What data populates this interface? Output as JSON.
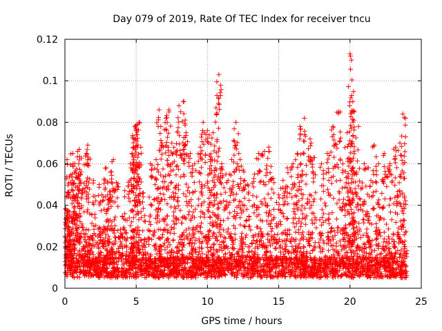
{
  "chart_data": {
    "type": "scatter",
    "title": "Day 079 of 2019, Rate Of TEC Index for receiver tncu",
    "xlabel": "GPS time / hours",
    "ylabel": "ROTI / TECUs",
    "xlim": [
      0,
      25
    ],
    "ylim": [
      0,
      0.12
    ],
    "x_ticks": [
      0,
      5,
      10,
      15,
      20,
      25
    ],
    "x_tick_labels": [
      "0",
      "5",
      "10",
      "15",
      "20",
      "25"
    ],
    "y_ticks": [
      0,
      0.02,
      0.04,
      0.06,
      0.08,
      0.1,
      0.12
    ],
    "y_tick_labels": [
      "0",
      "0.02",
      "0.04",
      "0.06",
      "0.08",
      "0.1",
      "0.12"
    ],
    "grid": true,
    "marker": "+",
    "color": "#ff0000",
    "background_band": [
      0.005,
      0.015
    ],
    "points": [
      [
        0.05,
        0.038
      ],
      [
        0.1,
        0.034
      ],
      [
        0.15,
        0.062
      ],
      [
        0.2,
        0.025
      ],
      [
        0.3,
        0.045
      ],
      [
        0.4,
        0.051
      ],
      [
        0.5,
        0.055
      ],
      [
        0.55,
        0.065
      ],
      [
        0.7,
        0.06
      ],
      [
        0.8,
        0.045
      ],
      [
        0.9,
        0.066
      ],
      [
        1.0,
        0.067
      ],
      [
        1.1,
        0.055
      ],
      [
        1.2,
        0.03
      ],
      [
        1.5,
        0.065
      ],
      [
        1.6,
        0.069
      ],
      [
        1.8,
        0.025
      ],
      [
        2.0,
        0.052
      ],
      [
        2.4,
        0.05
      ],
      [
        2.6,
        0.045
      ],
      [
        2.9,
        0.058
      ],
      [
        3.0,
        0.045
      ],
      [
        3.2,
        0.056
      ],
      [
        3.4,
        0.062
      ],
      [
        3.6,
        0.051
      ],
      [
        3.9,
        0.025
      ],
      [
        4.2,
        0.047
      ],
      [
        4.6,
        0.06
      ],
      [
        4.7,
        0.065
      ],
      [
        4.8,
        0.068
      ],
      [
        4.9,
        0.078
      ],
      [
        5.0,
        0.076
      ],
      [
        5.1,
        0.079
      ],
      [
        5.2,
        0.08
      ],
      [
        5.5,
        0.046
      ],
      [
        6.0,
        0.06
      ],
      [
        6.4,
        0.062
      ],
      [
        6.6,
        0.086
      ],
      [
        6.8,
        0.07
      ],
      [
        7.1,
        0.082
      ],
      [
        7.3,
        0.086
      ],
      [
        7.5,
        0.07
      ],
      [
        7.8,
        0.066
      ],
      [
        8.0,
        0.088
      ],
      [
        8.3,
        0.09
      ],
      [
        8.5,
        0.075
      ],
      [
        8.8,
        0.065
      ],
      [
        9.1,
        0.06
      ],
      [
        9.5,
        0.068
      ],
      [
        9.7,
        0.08
      ],
      [
        10.0,
        0.076
      ],
      [
        10.2,
        0.062
      ],
      [
        10.4,
        0.075
      ],
      [
        10.6,
        0.087
      ],
      [
        10.8,
        0.103
      ],
      [
        11.0,
        0.06
      ],
      [
        11.3,
        0.055
      ],
      [
        11.7,
        0.062
      ],
      [
        12.0,
        0.08
      ],
      [
        12.2,
        0.065
      ],
      [
        12.5,
        0.057
      ],
      [
        12.8,
        0.05
      ],
      [
        13.3,
        0.055
      ],
      [
        13.6,
        0.065
      ],
      [
        14.0,
        0.066
      ],
      [
        14.3,
        0.068
      ],
      [
        14.6,
        0.053
      ],
      [
        15.0,
        0.045
      ],
      [
        15.3,
        0.052
      ],
      [
        15.6,
        0.058
      ],
      [
        16.0,
        0.06
      ],
      [
        16.3,
        0.065
      ],
      [
        16.5,
        0.078
      ],
      [
        16.8,
        0.082
      ],
      [
        17.2,
        0.072
      ],
      [
        17.5,
        0.063
      ],
      [
        18.0,
        0.06
      ],
      [
        18.4,
        0.065
      ],
      [
        18.8,
        0.078
      ],
      [
        19.2,
        0.085
      ],
      [
        19.5,
        0.06
      ],
      [
        19.8,
        0.075
      ],
      [
        20.0,
        0.113
      ],
      [
        20.1,
        0.11
      ],
      [
        20.2,
        0.09
      ],
      [
        20.3,
        0.085
      ],
      [
        20.6,
        0.078
      ],
      [
        21.0,
        0.06
      ],
      [
        21.3,
        0.058
      ],
      [
        21.7,
        0.069
      ],
      [
        22.0,
        0.06
      ],
      [
        22.4,
        0.065
      ],
      [
        22.8,
        0.06
      ],
      [
        23.2,
        0.068
      ],
      [
        23.5,
        0.07
      ],
      [
        23.7,
        0.084
      ],
      [
        23.9,
        0.082
      ]
    ]
  }
}
